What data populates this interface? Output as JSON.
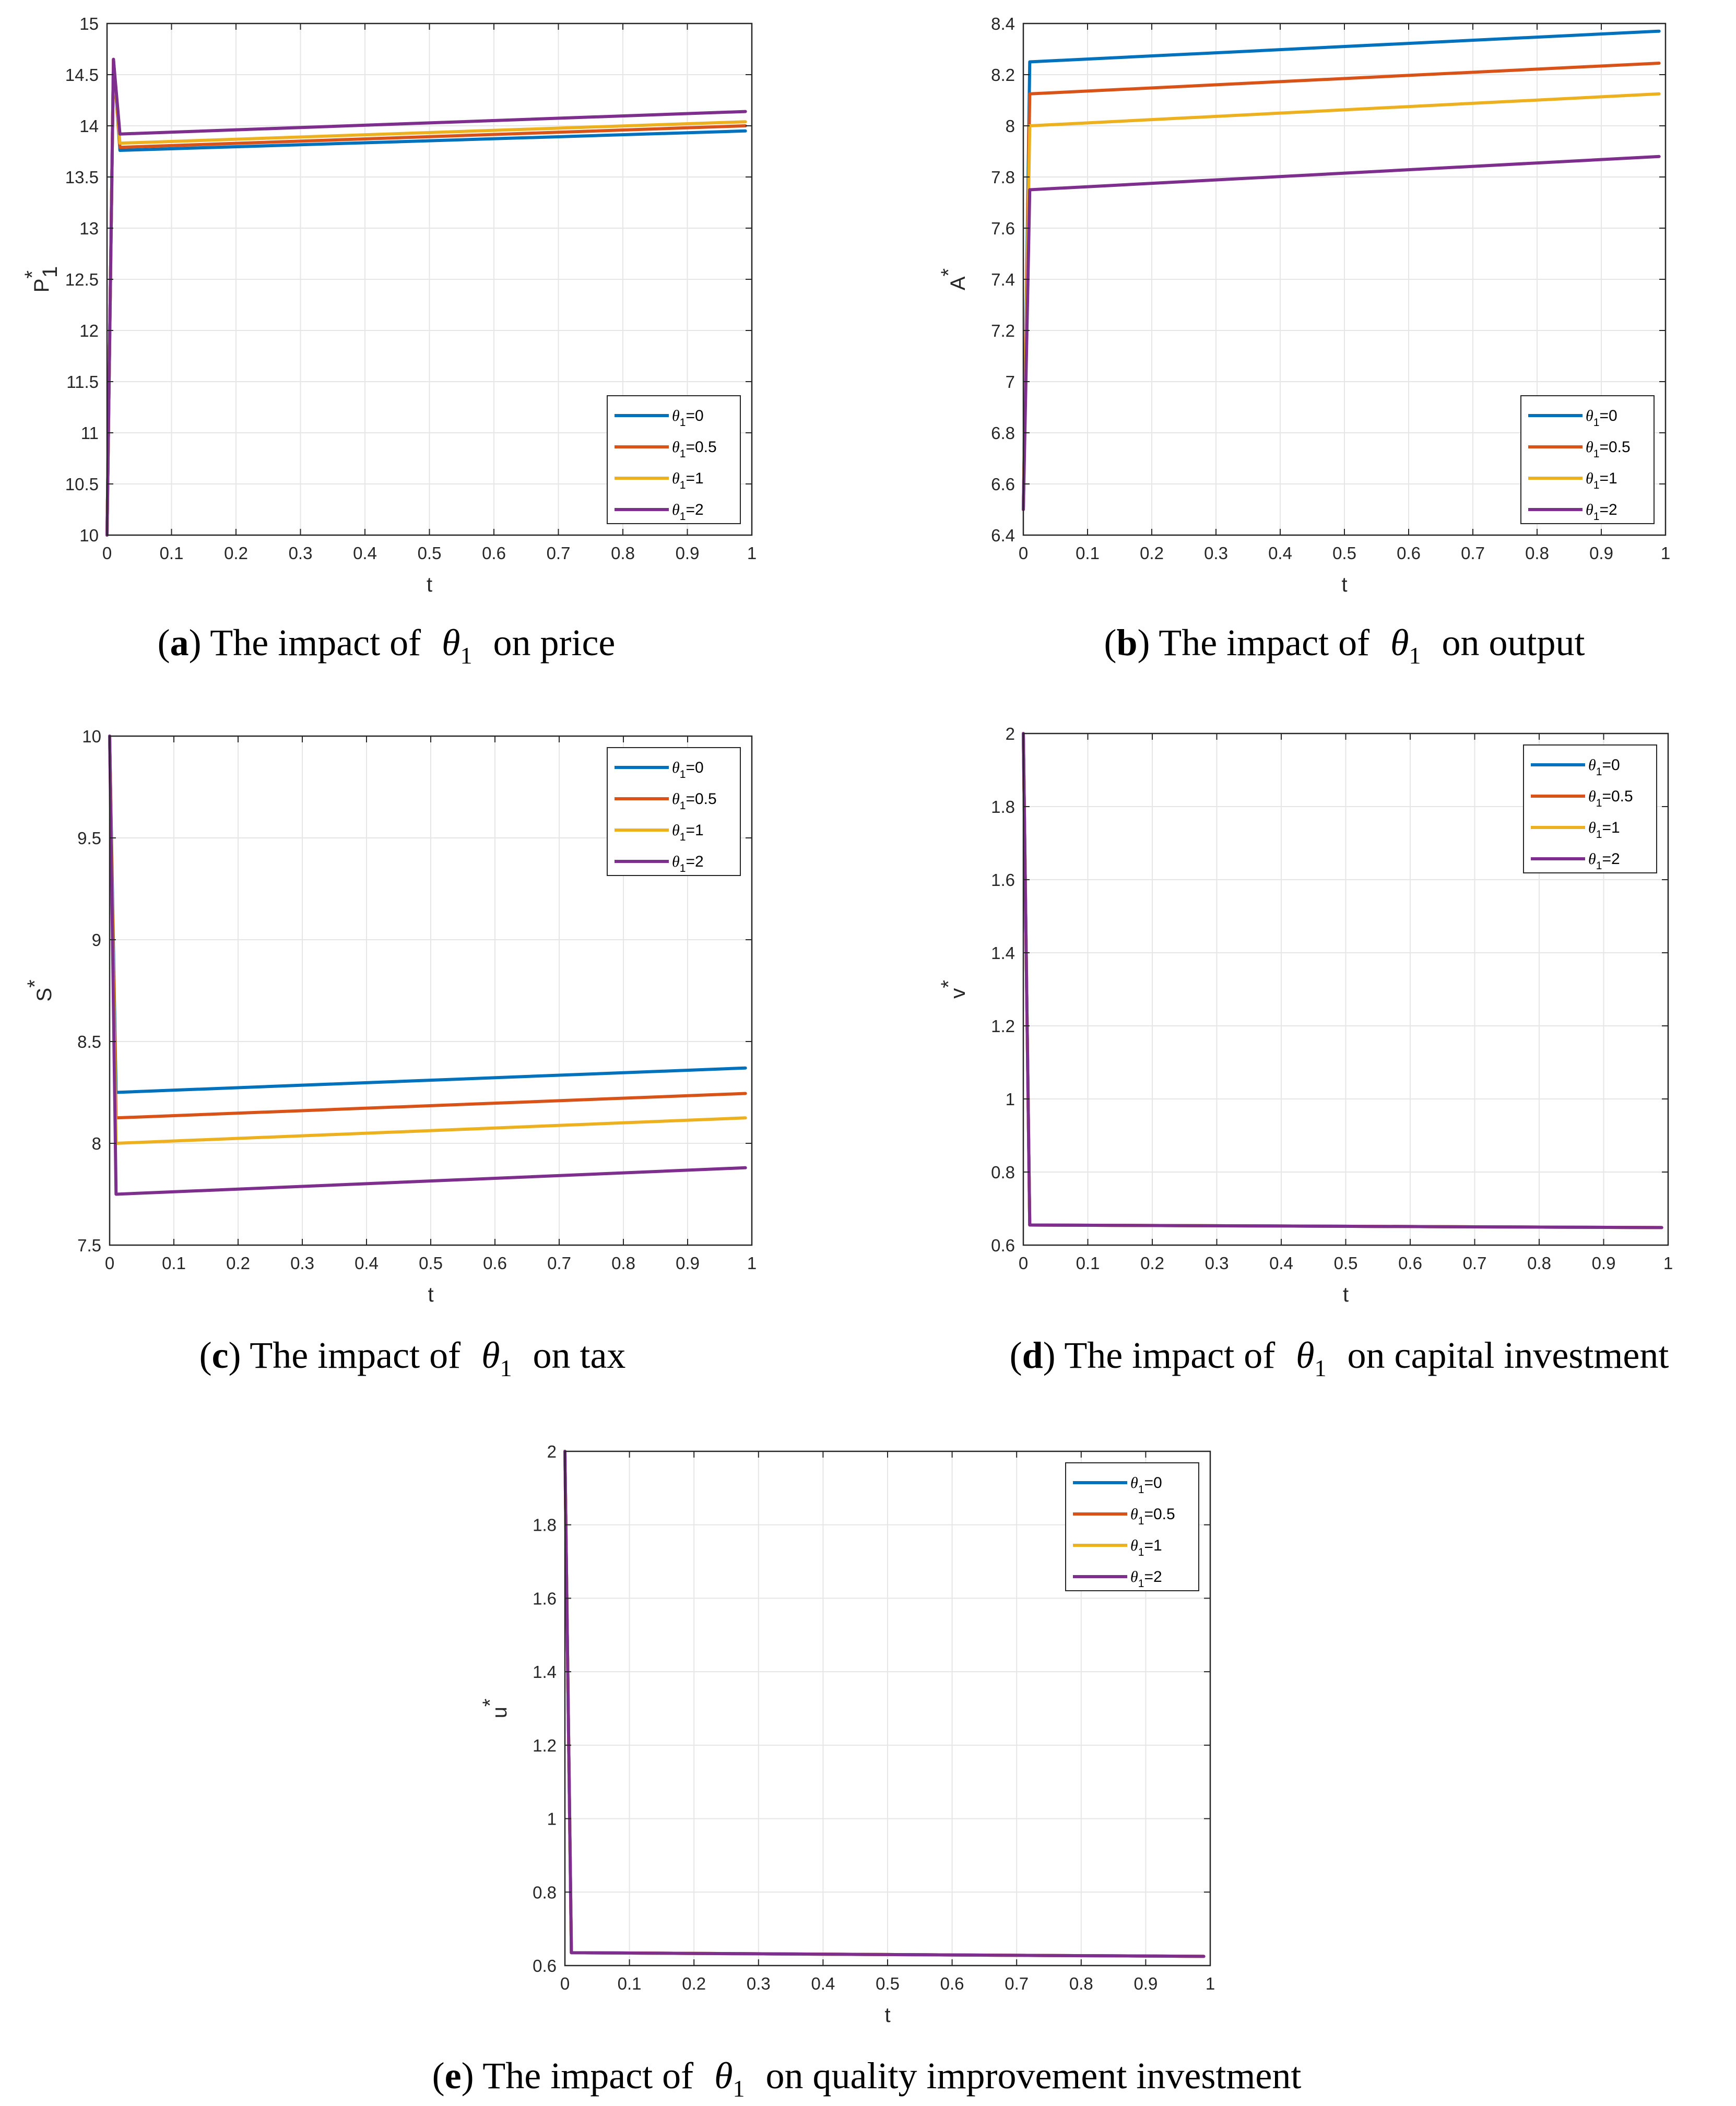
{
  "chart_data": [
    {
      "id": "a",
      "type": "line",
      "caption": {
        "letter": "a",
        "text": "The impact of",
        "symbol": "θ",
        "symbol_sub": "1",
        "suffix": "on price"
      },
      "xlabel": "t",
      "ylabel": {
        "base": "P",
        "sup": "*",
        "sub": "1"
      },
      "xlim": [
        0,
        1
      ],
      "ylim": [
        10,
        15
      ],
      "xticks": [
        0,
        0.1,
        0.2,
        0.3,
        0.4,
        0.5,
        0.6,
        0.7,
        0.8,
        0.9,
        1
      ],
      "xtick_labels": [
        "0",
        "0.1",
        "0.2",
        "0.3",
        "0.4",
        "0.5",
        "0.6",
        "0.7",
        "0.8",
        "0.9",
        "1"
      ],
      "yticks": [
        10,
        10.5,
        11,
        11.5,
        12,
        12.5,
        13,
        13.5,
        14,
        14.5,
        15
      ],
      "ytick_labels": [
        "10",
        "10.5",
        "11",
        "11.5",
        "12",
        "12.5",
        "13",
        "13.5",
        "14",
        "14.5",
        "15"
      ],
      "grid": true,
      "legend": "lower-right",
      "series": [
        {
          "name": "θ1=0",
          "x": [
            0,
            0.01,
            0.02,
            0.99
          ],
          "y": [
            10,
            14.65,
            13.76,
            13.95
          ]
        },
        {
          "name": "θ1=0.5",
          "x": [
            0,
            0.01,
            0.02,
            0.99
          ],
          "y": [
            10,
            14.65,
            13.79,
            14.0
          ]
        },
        {
          "name": "θ1=1",
          "x": [
            0,
            0.01,
            0.02,
            0.99
          ],
          "y": [
            10,
            14.65,
            13.83,
            14.04
          ]
        },
        {
          "name": "θ1=2",
          "x": [
            0,
            0.01,
            0.02,
            0.99
          ],
          "y": [
            10,
            14.65,
            13.92,
            14.14
          ]
        }
      ]
    },
    {
      "id": "b",
      "type": "line",
      "caption": {
        "letter": "b",
        "text": "The impact of",
        "symbol": "θ",
        "symbol_sub": "1",
        "suffix": "on output"
      },
      "xlabel": "t",
      "ylabel": {
        "base": "A",
        "sup": "*",
        "sub": ""
      },
      "xlim": [
        0,
        1
      ],
      "ylim": [
        6.4,
        8.4
      ],
      "xticks": [
        0,
        0.1,
        0.2,
        0.3,
        0.4,
        0.5,
        0.6,
        0.7,
        0.8,
        0.9,
        1
      ],
      "xtick_labels": [
        "0",
        "0.1",
        "0.2",
        "0.3",
        "0.4",
        "0.5",
        "0.6",
        "0.7",
        "0.8",
        "0.9",
        "1"
      ],
      "yticks": [
        6.4,
        6.6,
        6.8,
        7,
        7.2,
        7.4,
        7.6,
        7.8,
        8,
        8.2,
        8.4
      ],
      "ytick_labels": [
        "6.4",
        "6.6",
        "6.8",
        "7",
        "7.2",
        "7.4",
        "7.6",
        "7.8",
        "8",
        "8.2",
        "8.4"
      ],
      "grid": true,
      "legend": "lower-right",
      "series": [
        {
          "name": "θ1=0",
          "x": [
            0,
            0.01,
            0.99
          ],
          "y": [
            6.5,
            8.25,
            8.37
          ]
        },
        {
          "name": "θ1=0.5",
          "x": [
            0,
            0.01,
            0.99
          ],
          "y": [
            6.5,
            8.125,
            8.245
          ]
        },
        {
          "name": "θ1=1",
          "x": [
            0,
            0.01,
            0.99
          ],
          "y": [
            6.5,
            8.0,
            8.125
          ]
        },
        {
          "name": "θ1=2",
          "x": [
            0,
            0.01,
            0.99
          ],
          "y": [
            6.5,
            7.75,
            7.88
          ]
        }
      ]
    },
    {
      "id": "c",
      "type": "line",
      "caption": {
        "letter": "c",
        "text": "The impact of",
        "symbol": "θ",
        "symbol_sub": "1",
        "suffix": "on tax"
      },
      "xlabel": "t",
      "ylabel": {
        "base": "S",
        "sup": "*",
        "sub": ""
      },
      "xlim": [
        0,
        1
      ],
      "ylim": [
        7.5,
        10
      ],
      "xticks": [
        0,
        0.1,
        0.2,
        0.3,
        0.4,
        0.5,
        0.6,
        0.7,
        0.8,
        0.9,
        1
      ],
      "xtick_labels": [
        "0",
        "0.1",
        "0.2",
        "0.3",
        "0.4",
        "0.5",
        "0.6",
        "0.7",
        "0.8",
        "0.9",
        "1"
      ],
      "yticks": [
        7.5,
        8,
        8.5,
        9,
        9.5,
        10
      ],
      "ytick_labels": [
        "7.5",
        "8",
        "8.5",
        "9",
        "9.5",
        "10"
      ],
      "grid": true,
      "legend": "top-right",
      "series": [
        {
          "name": "θ1=0",
          "x": [
            0,
            0.01,
            0.99
          ],
          "y": [
            10,
            8.25,
            8.37
          ]
        },
        {
          "name": "θ1=0.5",
          "x": [
            0,
            0.01,
            0.99
          ],
          "y": [
            10,
            8.125,
            8.245
          ]
        },
        {
          "name": "θ1=1",
          "x": [
            0,
            0.01,
            0.99
          ],
          "y": [
            10,
            8.0,
            8.125
          ]
        },
        {
          "name": "θ1=2",
          "x": [
            0,
            0.01,
            0.99
          ],
          "y": [
            10,
            7.75,
            7.88
          ]
        }
      ]
    },
    {
      "id": "d",
      "type": "line",
      "caption": {
        "letter": "d",
        "text": "The impact of",
        "symbol": "θ",
        "symbol_sub": "1",
        "suffix": "on capital investment"
      },
      "xlabel": "t",
      "ylabel": {
        "base": "v",
        "sup": "*",
        "sub": ""
      },
      "xlim": [
        0,
        1
      ],
      "ylim": [
        0.6,
        2
      ],
      "xticks": [
        0,
        0.1,
        0.2,
        0.3,
        0.4,
        0.5,
        0.6,
        0.7,
        0.8,
        0.9,
        1
      ],
      "xtick_labels": [
        "0",
        "0.1",
        "0.2",
        "0.3",
        "0.4",
        "0.5",
        "0.6",
        "0.7",
        "0.8",
        "0.9",
        "1"
      ],
      "yticks": [
        0.6,
        0.8,
        1,
        1.2,
        1.4,
        1.6,
        1.8,
        2
      ],
      "ytick_labels": [
        "0.6",
        "0.8",
        "1",
        "1.2",
        "1.4",
        "1.6",
        "1.8",
        "2"
      ],
      "grid": true,
      "legend": "top-right",
      "series": [
        {
          "name": "θ1=0",
          "x": [
            0,
            0.01,
            0.99
          ],
          "y": [
            2,
            0.655,
            0.648
          ]
        },
        {
          "name": "θ1=0.5",
          "x": [
            0,
            0.01,
            0.99
          ],
          "y": [
            2,
            0.655,
            0.648
          ]
        },
        {
          "name": "θ1=1",
          "x": [
            0,
            0.01,
            0.99
          ],
          "y": [
            2,
            0.655,
            0.648
          ]
        },
        {
          "name": "θ1=2",
          "x": [
            0,
            0.01,
            0.99
          ],
          "y": [
            2,
            0.655,
            0.648
          ]
        }
      ]
    },
    {
      "id": "e",
      "type": "line",
      "caption": {
        "letter": "e",
        "text": "The impact of",
        "symbol": "θ",
        "symbol_sub": "1",
        "suffix": "on quality improvement investment"
      },
      "xlabel": "t",
      "ylabel": {
        "base": "u",
        "sup": "*",
        "sub": ""
      },
      "xlim": [
        0,
        1
      ],
      "ylim": [
        0.6,
        2
      ],
      "xticks": [
        0,
        0.1,
        0.2,
        0.3,
        0.4,
        0.5,
        0.6,
        0.7,
        0.8,
        0.9,
        1
      ],
      "xtick_labels": [
        "0",
        "0.1",
        "0.2",
        "0.3",
        "0.4",
        "0.5",
        "0.6",
        "0.7",
        "0.8",
        "0.9",
        "1"
      ],
      "yticks": [
        0.6,
        0.8,
        1,
        1.2,
        1.4,
        1.6,
        1.8,
        2
      ],
      "ytick_labels": [
        "0.6",
        "0.8",
        "1",
        "1.2",
        "1.4",
        "1.6",
        "1.8",
        "2"
      ],
      "grid": true,
      "legend": "top-right",
      "series": [
        {
          "name": "θ1=0",
          "x": [
            0,
            0.01,
            0.99
          ],
          "y": [
            2,
            0.635,
            0.625
          ]
        },
        {
          "name": "θ1=0.5",
          "x": [
            0,
            0.01,
            0.99
          ],
          "y": [
            2,
            0.635,
            0.625
          ]
        },
        {
          "name": "θ1=1",
          "x": [
            0,
            0.01,
            0.99
          ],
          "y": [
            2,
            0.635,
            0.625
          ]
        },
        {
          "name": "θ1=2",
          "x": [
            0,
            0.01,
            0.99
          ],
          "y": [
            2,
            0.635,
            0.625
          ]
        }
      ]
    }
  ],
  "legend_entries": [
    {
      "symbol": "θ",
      "sub": "1",
      "value": "=0"
    },
    {
      "symbol": "θ",
      "sub": "1",
      "value": "=0.5"
    },
    {
      "symbol": "θ",
      "sub": "1",
      "value": "=1"
    },
    {
      "symbol": "θ",
      "sub": "1",
      "value": "=2"
    }
  ],
  "colors": {
    "series": [
      "#0072BD",
      "#D95319",
      "#EDB120",
      "#7E2F8E"
    ],
    "grid": "#e6e6e6",
    "axis": "#262626"
  }
}
